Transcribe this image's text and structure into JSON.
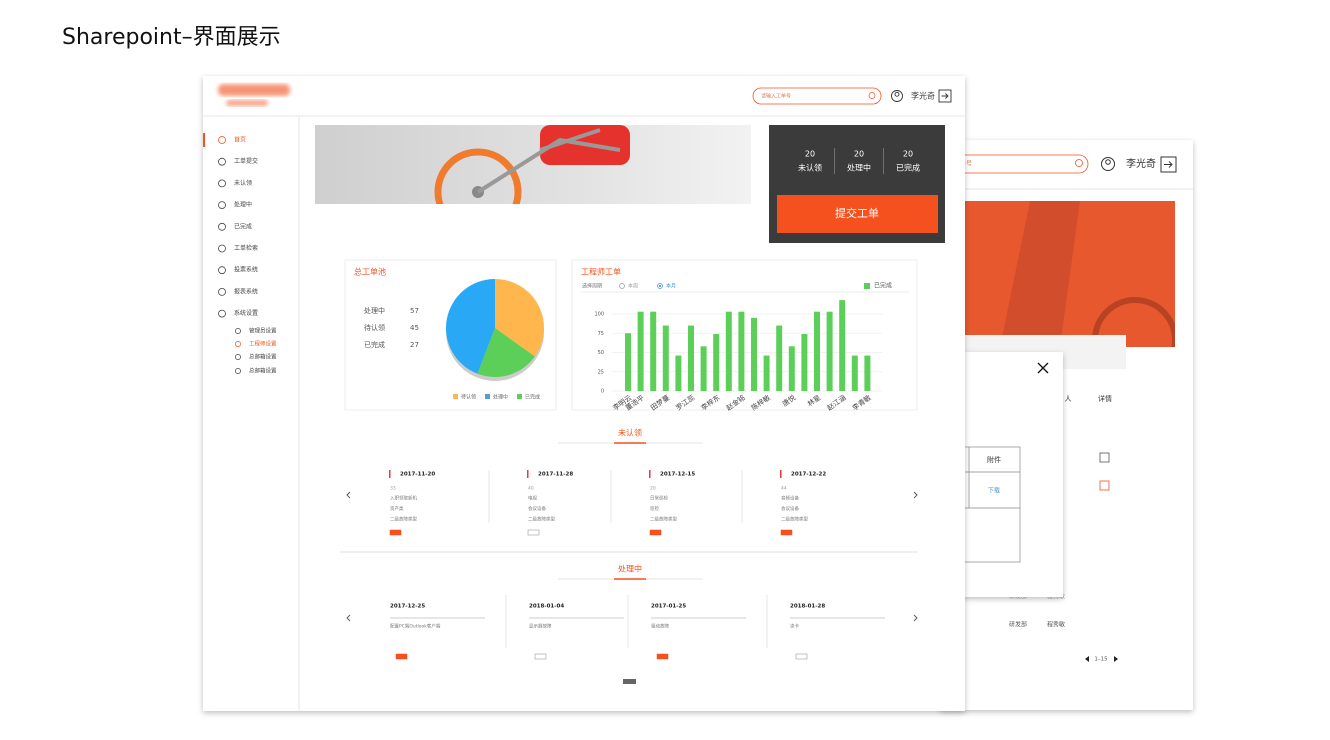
{
  "page_title": "Sharepoint–界面展示",
  "front": {
    "search_placeholder": "请输入工单号",
    "user": "李光奇",
    "nav": [
      "首页",
      "工单提交",
      "未认领",
      "处理中",
      "已完成",
      "工单检索",
      "投票系统",
      "报表系统",
      "系统设置"
    ],
    "subnav": [
      "管理员设置",
      "工程师设置",
      "总邮箱设置",
      "总邮箱设置"
    ],
    "stats": [
      {
        "value": 20,
        "label": "未认领"
      },
      {
        "value": 20,
        "label": "处理中"
      },
      {
        "value": 20,
        "label": "已完成"
      }
    ],
    "submit": "提交工单",
    "pie_chart": {
      "type": "pie",
      "title": "总工单池",
      "items": [
        {
          "label": "处理中",
          "value": 57,
          "color": "#29a8f5"
        },
        {
          "label": "待认领",
          "value": 45,
          "color": "#ffb74d"
        },
        {
          "label": "已完成",
          "value": 27,
          "color": "#5ccf58"
        }
      ],
      "legend": [
        {
          "label": "待认领",
          "color": "#ffb74d"
        },
        {
          "label": "处理中",
          "color": "#5b9bd5"
        },
        {
          "label": "已完成",
          "color": "#5ccf58"
        }
      ]
    },
    "bar_chart": {
      "type": "bar",
      "title": "工程师工单",
      "period_label": "选择周期",
      "period_options": [
        "本周",
        "本月"
      ],
      "categories": [
        "李明云",
        "董浩平",
        null,
        "田梦蔓",
        null,
        "罗江蕊",
        null,
        "李梓东",
        null,
        "赵金铭",
        null,
        "陈梓敏",
        null,
        "唐悦",
        null,
        "林星",
        null,
        "赵江涵",
        null,
        "李青敏"
      ],
      "series": [
        {
          "name": "已完成",
          "color": "#5ccf58",
          "values": [
            75,
            103,
            103,
            85,
            46,
            85,
            58,
            74,
            103,
            103,
            95,
            46,
            85,
            58,
            74,
            103,
            103,
            118,
            46,
            46
          ]
        }
      ],
      "ylim": [
        0,
        125
      ],
      "yticks": [
        0,
        25,
        50,
        75,
        100
      ],
      "grid": true
    },
    "unclaimed": {
      "tab": "未认领",
      "cards": [
        {
          "date": "2017-11-20",
          "number": 33,
          "lines": [
            "入职领取新机",
            "资产类",
            "二级故障类型"
          ]
        },
        {
          "date": "2017-11-28",
          "number": 40,
          "lines": [
            "电视",
            "会议设备",
            "二级故障类型"
          ]
        },
        {
          "date": "2017-12-15",
          "number": 20,
          "lines": [
            "日常巡检",
            "巡检",
            "二级故障类型"
          ]
        },
        {
          "date": "2017-12-22",
          "number": 44,
          "lines": [
            "音频设备",
            "会议设备",
            "二级故障类型"
          ]
        }
      ]
    },
    "processing": {
      "tab": "处理中",
      "cards": [
        {
          "date": "2017-12-25",
          "text": "配置PC端Outlook客户端"
        },
        {
          "date": "2018-01-04",
          "text": "显示器故障"
        },
        {
          "date": "2017-01-25",
          "text": "驱动故障"
        },
        {
          "date": "2018-01-28",
          "text": "读卡"
        }
      ]
    }
  },
  "back": {
    "search_placeholder": "单号",
    "user": "李光奇",
    "columns": [
      "人",
      "详情"
    ],
    "modal_column": "附件",
    "download": "下载",
    "rows": [
      [
        "研发部",
        "程秀敏"
      ],
      [
        "研发部",
        "程秀敏"
      ]
    ],
    "pagination": "1–15"
  }
}
